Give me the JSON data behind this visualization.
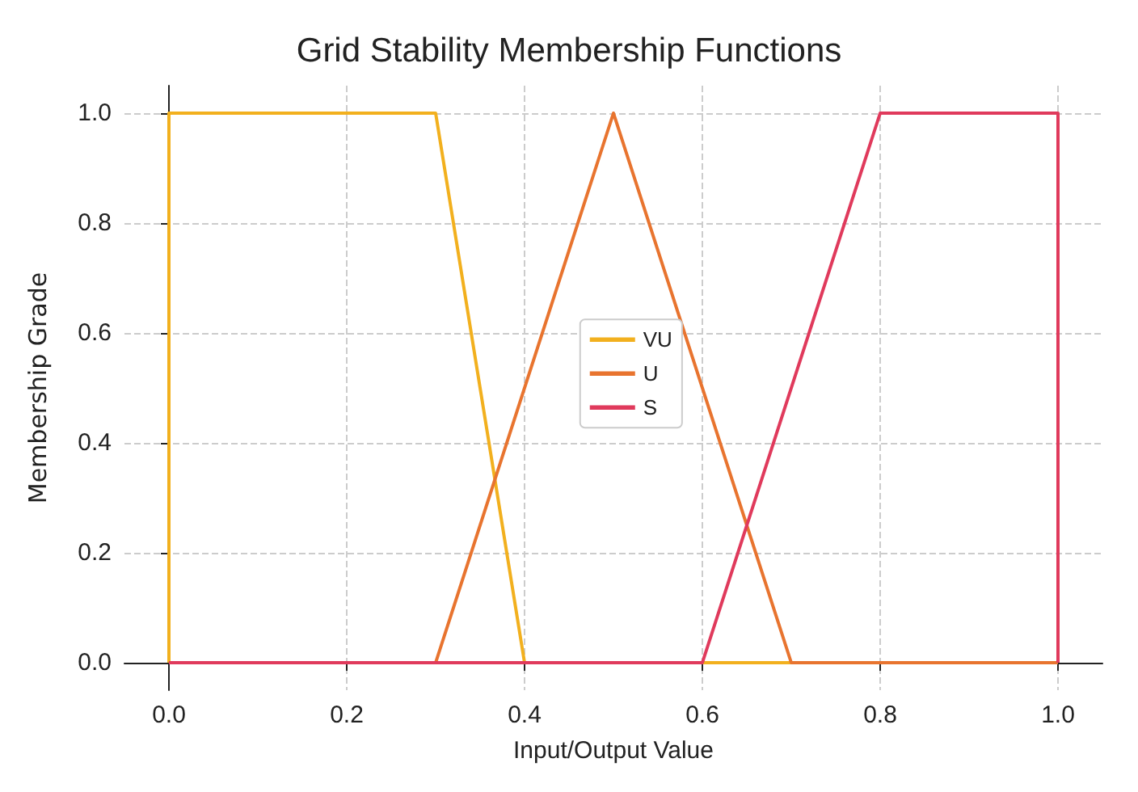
{
  "chart_data": {
    "type": "line",
    "title": "Grid Stability Membership Functions",
    "xlabel": "Input/Output Value",
    "ylabel": "Membership Grade",
    "series": [
      {
        "name": "VU",
        "color": "#f2b01e",
        "x": [
          0,
          0,
          0.3,
          0.4,
          1
        ],
        "values": [
          0,
          1,
          1,
          0,
          0
        ]
      },
      {
        "name": "U",
        "color": "#e8742f",
        "x": [
          0,
          0.3,
          0.5,
          0.7,
          1
        ],
        "values": [
          0,
          0,
          1,
          0,
          0
        ]
      },
      {
        "name": "S",
        "color": "#e03a5c",
        "x": [
          0,
          0.6,
          0.8,
          1,
          1
        ],
        "values": [
          0,
          0,
          1,
          1,
          0
        ]
      }
    ],
    "xlim": [
      -0.05,
      1.05
    ],
    "ylim": [
      -0.05,
      1.05
    ],
    "xticks": [
      {
        "value": 0,
        "label": "0.0"
      },
      {
        "value": 0.2,
        "label": "0.2"
      },
      {
        "value": 0.4,
        "label": "0.4"
      },
      {
        "value": 0.6,
        "label": "0.6"
      },
      {
        "value": 0.8,
        "label": "0.8"
      },
      {
        "value": 1,
        "label": "1.0"
      }
    ],
    "yticks": [
      {
        "value": 0,
        "label": "0.0"
      },
      {
        "value": 0.2,
        "label": "0.2"
      },
      {
        "value": 0.4,
        "label": "0.4"
      },
      {
        "value": 0.6,
        "label": "0.6"
      },
      {
        "value": 0.8,
        "label": "0.8"
      },
      {
        "value": 1,
        "label": "1.0"
      }
    ],
    "grid": true,
    "legend": "center",
    "marker": "none",
    "line_style": "solid"
  }
}
